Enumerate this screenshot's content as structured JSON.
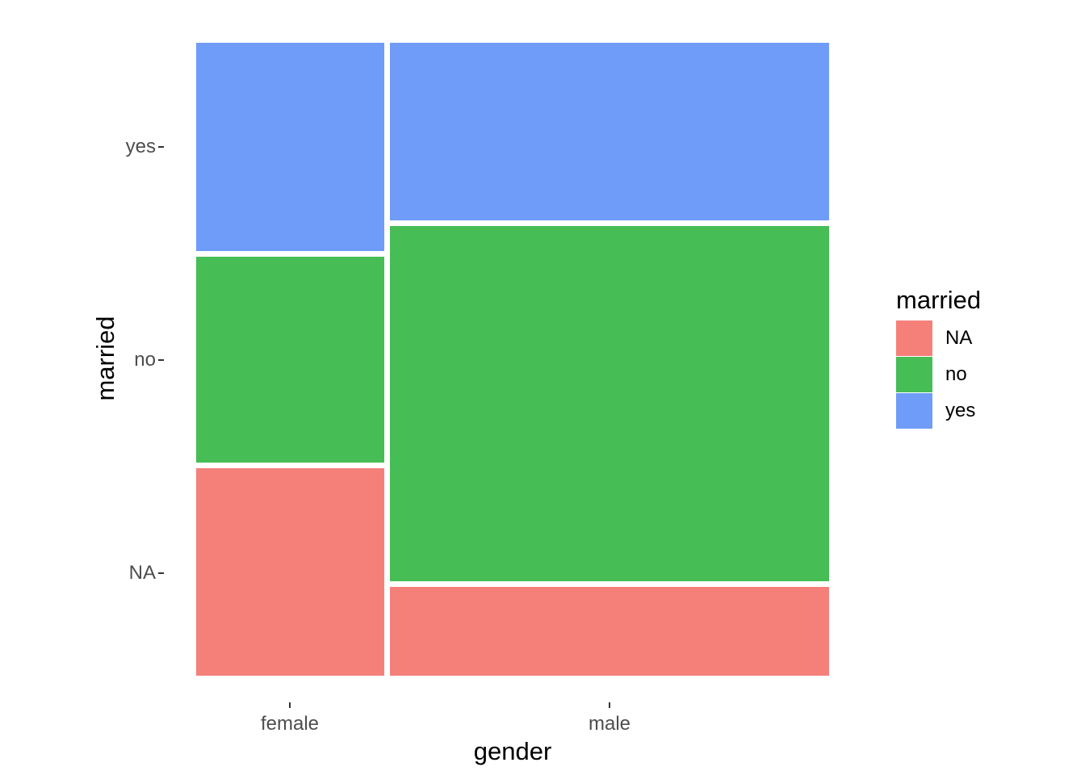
{
  "chart_data": {
    "type": "mosaic",
    "title": "",
    "xlabel": "gender",
    "ylabel": "married",
    "x_categories": [
      "female",
      "male"
    ],
    "fill_categories_top_to_bottom": [
      "yes",
      "no",
      "NA"
    ],
    "colors": {
      "NA": "#F5807A",
      "no": "#47BD55",
      "yes": "#6F9CF8"
    },
    "x_shares": {
      "female": 0.3,
      "male": 0.7
    },
    "cell_shares_top_to_bottom": {
      "female": {
        "yes": 0.335,
        "no": 0.331,
        "NA": 0.334
      },
      "male": {
        "yes": 0.286,
        "no": 0.571,
        "NA": 0.143
      }
    },
    "x_tick_labels": [
      "female",
      "male"
    ],
    "y_tick_labels": [
      "yes",
      "no",
      "NA"
    ],
    "legend_position": "right",
    "grid": false,
    "background": "#ffffff"
  },
  "y_axis": {
    "title": "married",
    "ticks": [
      {
        "label": "yes"
      },
      {
        "label": "no"
      },
      {
        "label": "NA"
      }
    ]
  },
  "x_axis": {
    "title": "gender",
    "ticks": [
      {
        "label": "female"
      },
      {
        "label": "male"
      }
    ]
  },
  "legend": {
    "title": "married",
    "entries": [
      {
        "label": "NA",
        "color": "#F5807A"
      },
      {
        "label": "no",
        "color": "#47BD55"
      },
      {
        "label": "yes",
        "color": "#6F9CF8"
      }
    ]
  }
}
